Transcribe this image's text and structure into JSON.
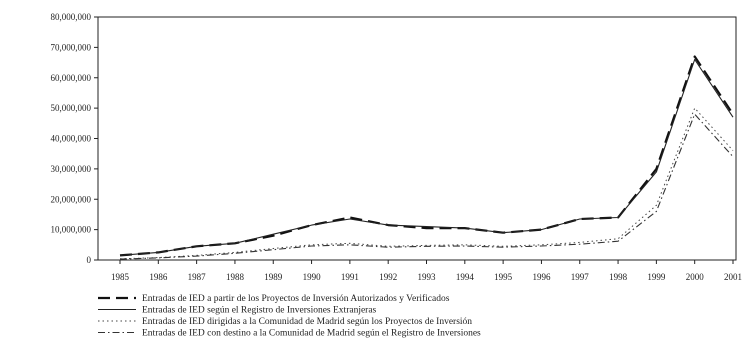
{
  "chart_data": {
    "type": "line",
    "title": "",
    "xlabel": "",
    "ylabel": "",
    "ylim": [
      0,
      80000000
    ],
    "yticks": [
      0,
      10000000,
      20000000,
      30000000,
      40000000,
      50000000,
      60000000,
      70000000,
      80000000
    ],
    "ytick_labels": [
      "0",
      "10,000,000",
      "20,000,000",
      "30,000,000",
      "40,000,000",
      "50,000,000",
      "60,000,000",
      "70,000,000",
      "80,000,000"
    ],
    "categories": [
      "1985",
      "1986",
      "1987",
      "1988",
      "1989",
      "1990",
      "1991",
      "1992",
      "1993",
      "1994",
      "1995",
      "1996",
      "1997",
      "1998",
      "1999",
      "2000",
      "2001"
    ],
    "grid": false,
    "legend_position": "bottom",
    "series": [
      {
        "name": "Entradas de IED a partir de los Proyectos de Inversión Autorizados y Verificados",
        "style": "long-dash",
        "color": "#111111",
        "values": [
          1500000,
          2500000,
          4500000,
          5500000,
          8000000,
          11500000,
          14000000,
          11500000,
          10500000,
          10500000,
          9000000,
          10000000,
          13500000,
          14000000,
          30000000,
          67000000,
          48000000
        ]
      },
      {
        "name": "Entradas de IED según el Registro de Inversiones Extranjeras",
        "style": "solid",
        "color": "#222222",
        "values": [
          1500000,
          2500000,
          4500000,
          5500000,
          8500000,
          11500000,
          13500000,
          11500000,
          11000000,
          10500000,
          9000000,
          10000000,
          13500000,
          14000000,
          29000000,
          66000000,
          47000000
        ]
      },
      {
        "name": "Entradas de IED dirigidas a la Comunidad de Madrid según los Proyectos de Inversión",
        "style": "dotted",
        "color": "#444444",
        "values": [
          400000,
          800000,
          1500000,
          2500000,
          3800000,
          5000000,
          5500000,
          4500000,
          4800000,
          5000000,
          4500000,
          5000000,
          5800000,
          7000000,
          18000000,
          50000000,
          36000000
        ]
      },
      {
        "name": "Entradas de IED con destino a la Comunidad de Madrid según el Registro de Inversiones",
        "style": "dash-dot",
        "color": "#333333",
        "values": [
          300000,
          700000,
          1300000,
          2200000,
          3400000,
          4600000,
          5000000,
          4200000,
          4500000,
          4600000,
          4200000,
          4600000,
          5200000,
          6200000,
          16000000,
          48000000,
          34000000
        ]
      }
    ]
  }
}
